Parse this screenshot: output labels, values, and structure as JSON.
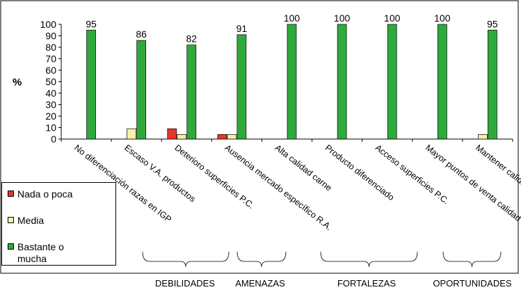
{
  "chart_data": {
    "type": "bar",
    "title": "",
    "xlabel": "",
    "ylabel": "%",
    "ylim": [
      0,
      100
    ],
    "yticks": [
      0,
      10,
      20,
      30,
      40,
      50,
      60,
      70,
      80,
      90,
      100
    ],
    "grid": false,
    "legend_position": "bottom-left",
    "categories": [
      "No diferenciación razas en IGP",
      "Escaso V.A. productos",
      "Deterioro superficies P.C.",
      "Ausencia mercado específico R.A.",
      "Alta calidad carne",
      "Producto diferenciado",
      "Acceso superficies P.C.",
      "Mayor puntos de venta calidad dif.",
      "Mantener calidad sin cruces"
    ],
    "series": [
      {
        "name": "Nada o poca",
        "color": "#e8352a",
        "values": [
          0,
          0,
          9,
          4,
          0,
          0,
          0,
          0,
          0
        ]
      },
      {
        "name": "Media",
        "color": "#f5f0a8",
        "values": [
          0,
          9,
          4,
          4,
          0,
          0,
          0,
          0,
          4
        ]
      },
      {
        "name": "Bastante o mucha",
        "color": "#2eaa3c",
        "values": [
          95,
          86,
          82,
          91,
          100,
          100,
          100,
          100,
          95
        ]
      }
    ],
    "data_labels": [
      "95",
      "86",
      "82",
      "91",
      "100",
      "100",
      "100",
      "100",
      "95"
    ],
    "groups": [
      {
        "label": "DEBILIDADES",
        "from": 0,
        "to": 3
      },
      {
        "label": "AMENAZAS",
        "from": 4,
        "to": 5
      },
      {
        "label": "FORTALEZAS",
        "from": 6,
        "to": 7
      },
      {
        "label": "OPORTUNIDADES",
        "from": 8,
        "to": 8
      }
    ]
  }
}
